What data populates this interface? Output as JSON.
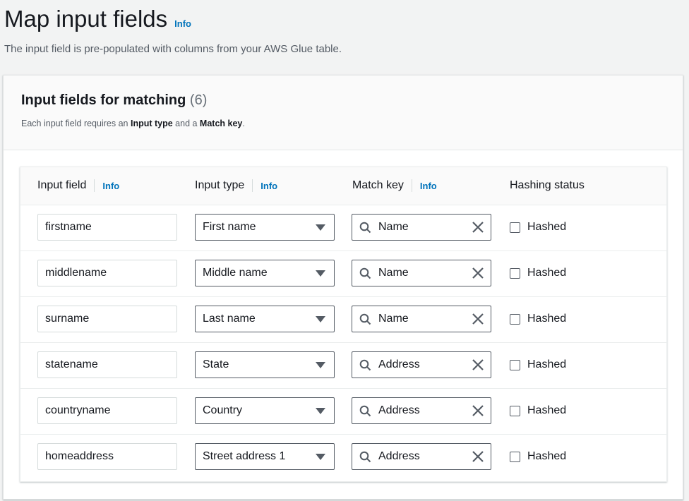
{
  "page": {
    "title": "Map input fields",
    "info": "Info",
    "subtitle": "The input field is pre-populated with columns from your AWS Glue table."
  },
  "card": {
    "title": "Input fields for matching",
    "count": "(6)",
    "desc_prefix": "Each input field requires an ",
    "desc_b1": "Input type",
    "desc_mid": " and a ",
    "desc_b2": "Match key",
    "desc_suffix": "."
  },
  "table": {
    "headers": {
      "input_field": "Input field",
      "input_type": "Input type",
      "match_key": "Match key",
      "hashing_status": "Hashing status",
      "info": "Info"
    },
    "rows": [
      {
        "input_field": "firstname",
        "input_type": "First name",
        "match_key": "Name",
        "hashed_label": "Hashed",
        "hashed": false
      },
      {
        "input_field": "middlename",
        "input_type": "Middle name",
        "match_key": "Name",
        "hashed_label": "Hashed",
        "hashed": false
      },
      {
        "input_field": "surname",
        "input_type": "Last name",
        "match_key": "Name",
        "hashed_label": "Hashed",
        "hashed": false
      },
      {
        "input_field": "statename",
        "input_type": "State",
        "match_key": "Address",
        "hashed_label": "Hashed",
        "hashed": false
      },
      {
        "input_field": "countryname",
        "input_type": "Country",
        "match_key": "Address",
        "hashed_label": "Hashed",
        "hashed": false
      },
      {
        "input_field": "homeaddress",
        "input_type": "Street address 1",
        "match_key": "Address",
        "hashed_label": "Hashed",
        "hashed": false
      }
    ]
  },
  "colors": {
    "link": "#0073bb",
    "background": "#f2f3f3"
  }
}
